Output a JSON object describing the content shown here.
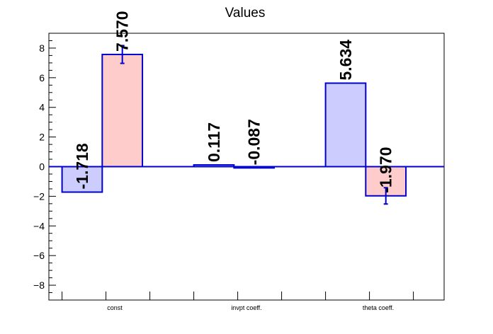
{
  "chart_data": {
    "type": "bar",
    "title": "Values",
    "categories": [
      "const",
      "invpt coeff.",
      "theta coeff."
    ],
    "series": [
      {
        "values": [
          -1.718,
          0.117,
          5.634
        ],
        "labels": [
          "-1.718",
          "0.117",
          "5.634"
        ],
        "errors": [
          0.0,
          0.0,
          0.0
        ],
        "fill": "#ccccff",
        "stroke": "#0000cc"
      },
      {
        "values": [
          7.57,
          -0.087,
          -1.97
        ],
        "labels": [
          "7.570",
          "-0.087",
          "-1.970"
        ],
        "errors": [
          0.6,
          0.0,
          0.55
        ],
        "fill": "#ffcccc",
        "stroke": "#0000cc"
      }
    ],
    "ylim": [
      -9,
      9
    ],
    "yticks": [
      -8,
      -6,
      -4,
      -2,
      0,
      2,
      4,
      6,
      8
    ],
    "ytick_labels": [
      "−8",
      "−6",
      "−4",
      "−2",
      "0",
      "2",
      "4",
      "6",
      "8"
    ],
    "zero_line_color": "#0000cc",
    "grid": false
  }
}
